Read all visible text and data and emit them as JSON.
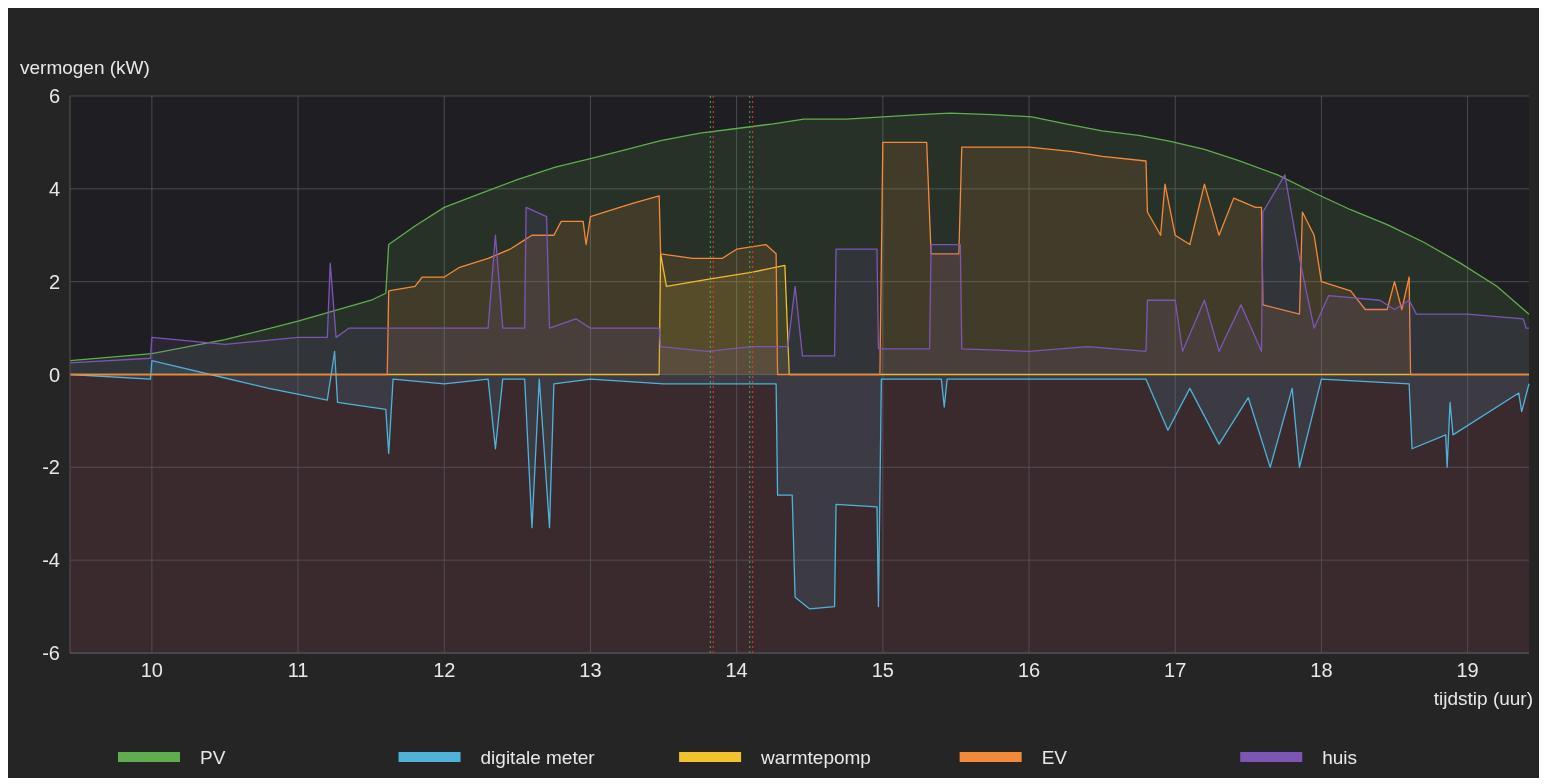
{
  "chart_data": {
    "type": "area",
    "xlabel": "tijdstip (uur)",
    "ylabel": "vermogen (kW)",
    "xlim": [
      9.44,
      19.42
    ],
    "xticks": [
      10,
      11,
      12,
      13,
      14,
      15,
      16,
      17,
      18,
      19
    ],
    "ylim": [
      -6,
      6
    ],
    "yticks": [
      -6,
      -4,
      -2,
      0,
      2,
      4,
      6
    ],
    "grid": true,
    "legend": "bottom",
    "line_style": "solid",
    "marker": "none",
    "bands": [
      {
        "axis": "y",
        "from": -6,
        "to": 0,
        "color": "#3a2a2e"
      }
    ],
    "ref_lines": [
      {
        "axis": "x",
        "value": 13.82,
        "color": "#4caf50",
        "line_style": "dotted"
      },
      {
        "axis": "x",
        "value": 13.84,
        "color": "#e04030",
        "line_style": "dotted"
      },
      {
        "axis": "x",
        "value": 14.09,
        "color": "#4caf50",
        "line_style": "dotted"
      },
      {
        "axis": "x",
        "value": 14.11,
        "color": "#e04030",
        "line_style": "dotted"
      }
    ],
    "series": [
      {
        "name": "PV",
        "color": "#5fae4e",
        "x": [
          9.44,
          10.0,
          10.5,
          11.0,
          11.5,
          11.6,
          11.62,
          11.8,
          12.0,
          12.25,
          12.5,
          12.76,
          13.0,
          13.25,
          13.48,
          13.75,
          14.0,
          14.25,
          14.46,
          14.75,
          15.0,
          15.25,
          15.46,
          15.75,
          16.02,
          16.25,
          16.5,
          16.75,
          16.96,
          17.2,
          17.44,
          17.7,
          17.96,
          18.2,
          18.45,
          18.7,
          18.95,
          19.2,
          19.42
        ],
        "values": [
          0.3,
          0.45,
          0.75,
          1.15,
          1.6,
          1.75,
          2.8,
          3.2,
          3.6,
          3.9,
          4.2,
          4.47,
          4.65,
          4.85,
          5.04,
          5.2,
          5.3,
          5.4,
          5.5,
          5.5,
          5.55,
          5.6,
          5.63,
          5.6,
          5.55,
          5.4,
          5.25,
          5.15,
          5.03,
          4.85,
          4.6,
          4.3,
          3.9,
          3.55,
          3.23,
          2.85,
          2.4,
          1.9,
          1.3
        ]
      },
      {
        "name": "digitale meter",
        "color": "#4fb3d9",
        "x": [
          9.44,
          9.99,
          10.0,
          10.4,
          10.8,
          11.2,
          11.25,
          11.27,
          11.6,
          11.62,
          11.65,
          12.0,
          12.3,
          12.35,
          12.4,
          12.55,
          12.6,
          12.65,
          12.72,
          12.75,
          13.0,
          13.5,
          14.0,
          14.27,
          14.28,
          14.38,
          14.4,
          14.5,
          14.67,
          14.68,
          14.96,
          14.97,
          14.99,
          15.4,
          15.42,
          15.44,
          16.0,
          16.8,
          16.95,
          17.1,
          17.3,
          17.5,
          17.65,
          17.8,
          17.85,
          18.0,
          18.6,
          18.62,
          18.85,
          18.86,
          18.88,
          18.9,
          19.35,
          19.37,
          19.42
        ],
        "values": [
          0,
          -0.1,
          0.3,
          0,
          -0.3,
          -0.55,
          0.5,
          -0.6,
          -0.75,
          -1.7,
          -0.1,
          -0.2,
          -0.1,
          -1.6,
          -0.1,
          -0.1,
          -3.3,
          -0.1,
          -3.3,
          -0.2,
          -0.1,
          -0.2,
          -0.2,
          -0.2,
          -2.6,
          -2.6,
          -4.8,
          -5.05,
          -5.0,
          -2.8,
          -2.85,
          -5.0,
          -0.1,
          -0.1,
          -0.7,
          -0.1,
          -0.1,
          -0.1,
          -1.2,
          -0.3,
          -1.5,
          -0.5,
          -2.0,
          -0.3,
          -2.0,
          -0.1,
          -0.2,
          -1.6,
          -1.3,
          -2.0,
          -0.6,
          -1.3,
          -0.4,
          -0.8,
          -0.2
        ]
      },
      {
        "name": "warmtepomp",
        "color": "#f2c12e",
        "x": [
          9.44,
          13.47,
          13.48,
          13.52,
          13.8,
          14.1,
          14.33,
          14.36,
          19.42
        ],
        "values": [
          0,
          0,
          2.6,
          1.9,
          2.05,
          2.2,
          2.35,
          0,
          0
        ]
      },
      {
        "name": "EV",
        "color": "#f5893a",
        "x": [
          9.44,
          11.61,
          11.62,
          11.8,
          11.85,
          12.0,
          12.1,
          12.3,
          12.45,
          12.55,
          12.6,
          12.75,
          12.8,
          12.95,
          12.97,
          13.0,
          13.2,
          13.3,
          13.47,
          13.48,
          13.7,
          13.9,
          14.0,
          14.2,
          14.27,
          14.28,
          14.98,
          15.0,
          15.3,
          15.33,
          15.52,
          15.54,
          15.8,
          16.0,
          16.3,
          16.5,
          16.8,
          16.81,
          16.9,
          16.93,
          17.0,
          17.1,
          17.2,
          17.3,
          17.4,
          17.55,
          17.59,
          17.6,
          17.85,
          17.87,
          17.95,
          18.0,
          18.2,
          18.3,
          18.45,
          18.5,
          18.55,
          18.6,
          18.61,
          19.42
        ],
        "values": [
          0,
          0,
          1.8,
          1.9,
          2.1,
          2.1,
          2.3,
          2.5,
          2.7,
          2.9,
          3.0,
          3.0,
          3.3,
          3.3,
          2.8,
          3.4,
          3.6,
          3.7,
          3.85,
          2.6,
          2.5,
          2.5,
          2.7,
          2.8,
          2.6,
          0,
          0,
          5.0,
          5.0,
          2.6,
          2.6,
          4.9,
          4.9,
          4.9,
          4.8,
          4.7,
          4.6,
          3.5,
          3.0,
          4.1,
          3.0,
          2.8,
          4.1,
          3.0,
          3.8,
          3.6,
          3.6,
          1.5,
          1.3,
          3.5,
          3.0,
          2.0,
          1.8,
          1.4,
          1.4,
          2.0,
          1.4,
          2.1,
          0,
          0
        ]
      },
      {
        "name": "huis",
        "color": "#7d55b5",
        "x": [
          9.44,
          9.99,
          10.0,
          10.5,
          11.0,
          11.2,
          11.22,
          11.26,
          11.35,
          11.6,
          11.8,
          12.0,
          12.3,
          12.35,
          12.4,
          12.55,
          12.56,
          12.7,
          12.72,
          12.9,
          13.0,
          13.47,
          13.48,
          13.8,
          14.1,
          14.35,
          14.4,
          14.45,
          14.67,
          14.68,
          14.96,
          14.97,
          15.32,
          15.33,
          15.53,
          15.54,
          16.0,
          16.4,
          16.8,
          16.81,
          17.0,
          17.05,
          17.2,
          17.3,
          17.45,
          17.59,
          17.6,
          17.75,
          17.85,
          17.95,
          18.05,
          18.4,
          18.5,
          18.6,
          18.65,
          19.0,
          19.38,
          19.4,
          19.42
        ],
        "values": [
          0.25,
          0.35,
          0.8,
          0.65,
          0.8,
          0.8,
          2.4,
          0.8,
          1.0,
          1.0,
          1.0,
          1.0,
          1.0,
          3.0,
          1.0,
          1.0,
          3.6,
          3.4,
          1.0,
          1.2,
          1.0,
          1.0,
          0.6,
          0.5,
          0.6,
          0.6,
          1.9,
          0.4,
          0.4,
          2.7,
          2.7,
          0.55,
          0.55,
          2.8,
          2.8,
          0.55,
          0.5,
          0.6,
          0.5,
          1.6,
          1.6,
          0.5,
          1.6,
          0.5,
          1.5,
          0.5,
          3.5,
          4.3,
          2.5,
          1.0,
          1.7,
          1.6,
          1.4,
          1.6,
          1.3,
          1.3,
          1.2,
          1.0,
          1.0
        ]
      }
    ]
  }
}
